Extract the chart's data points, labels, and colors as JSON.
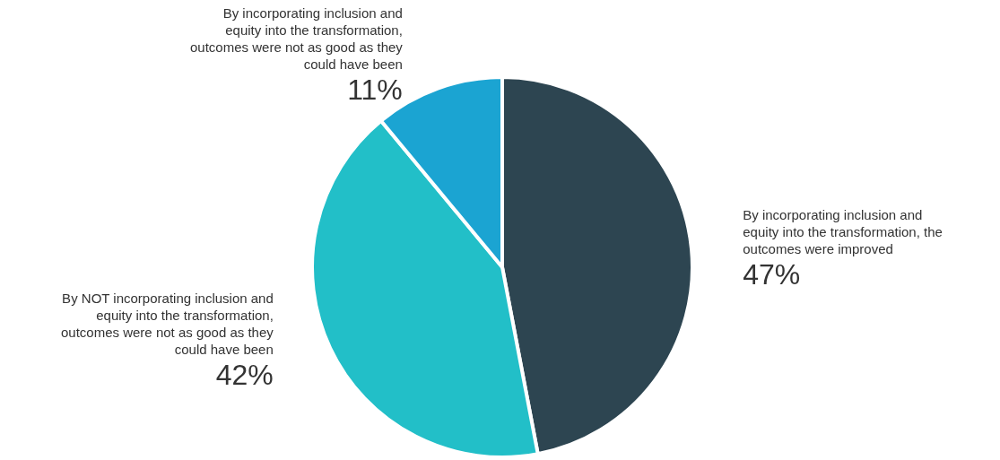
{
  "chart_data": {
    "type": "pie",
    "categories": [
      "By incorporating inclusion and equity into the transformation, the outcomes were improved",
      "By NOT incorporating inclusion and equity into the transformation, outcomes were not as good as they could have been",
      "By incorporating inclusion and equity into the transformation, outcomes were not as good as they could have been"
    ],
    "values": [
      47,
      42,
      11
    ],
    "colors": [
      "#2d4551",
      "#22bfc8",
      "#1ba4d2"
    ],
    "value_labels": [
      "47%",
      "42%",
      "11%"
    ]
  }
}
